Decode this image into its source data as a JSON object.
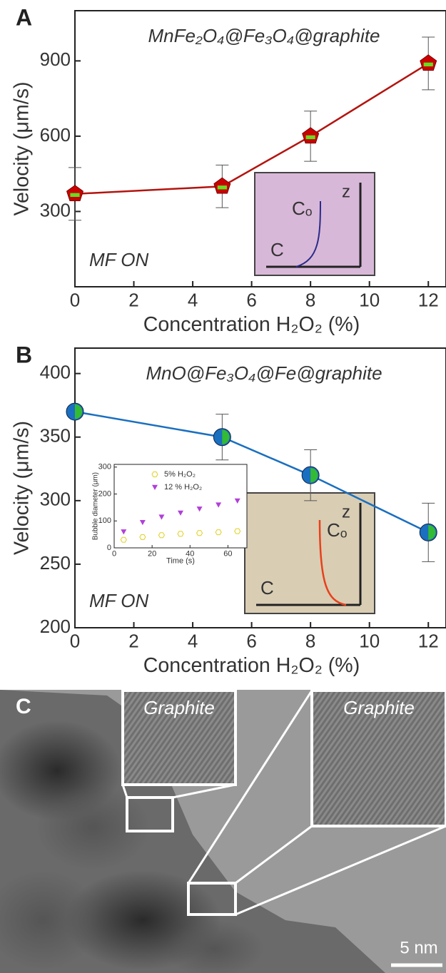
{
  "chart_data": [
    {
      "type": "line",
      "panel": "A",
      "title": "MnFe₂O₄@Fe₃O₄@graphite",
      "xlabel": "Concentration H₂O₂ (%)",
      "ylabel": "Velocity (μm/s)",
      "annotation": "MF ON",
      "x": [
        0,
        5,
        8,
        12
      ],
      "values": [
        370,
        400,
        600,
        890
      ],
      "errors": [
        105,
        85,
        100,
        105
      ],
      "color": "#b3140f",
      "marker": "pentagon",
      "marker_fill": "#cc0000",
      "marker_inner": "#66dd22",
      "xlim": [
        0,
        12.6
      ],
      "xticks": [
        0,
        2,
        4,
        6,
        8,
        10,
        12
      ],
      "ylim": [
        0,
        1100
      ],
      "yticks": [
        300,
        600,
        900
      ],
      "schematic": {
        "labels": [
          "C",
          "Cₒ",
          "z"
        ],
        "color": "#d8b8d8",
        "curve": "#2a2a8a"
      }
    },
    {
      "type": "line",
      "panel": "B",
      "title": "MnO@Fe₃O₄@Fe@graphite",
      "xlabel": "Concentration H₂O₂ (%)",
      "ylabel": "Velocity (μm/s)",
      "annotation": "MF ON",
      "x": [
        0,
        5,
        8,
        12
      ],
      "values": [
        370,
        350,
        320,
        275
      ],
      "errors": [
        0,
        18,
        20,
        23
      ],
      "color": "#1a6fc0",
      "marker": "circle",
      "marker_fill": "#1a6fc0",
      "marker_inner": "#33bb33",
      "xlim": [
        0,
        12.6
      ],
      "xticks": [
        0,
        2,
        4,
        6,
        8,
        10,
        12
      ],
      "ylim": [
        200,
        420
      ],
      "yticks": [
        200,
        250,
        300,
        350,
        400
      ],
      "schematic": {
        "labels": [
          "C",
          "Cₒ",
          "z"
        ],
        "color": "#d9cdb4",
        "curve": "#e8401a"
      }
    },
    {
      "type": "scatter",
      "xlabel": "Time (s)",
      "ylabel": "Bubble diameter (μm)",
      "series": [
        {
          "name": "5% H₂O₂",
          "color": "#e0d020",
          "marker": "hexagon",
          "x": [
            5,
            15,
            25,
            35,
            45,
            55,
            65
          ],
          "values": [
            30,
            40,
            47,
            52,
            55,
            58,
            62
          ]
        },
        {
          "name": "12 % H₂O₂",
          "color": "#b040d8",
          "marker": "triangle",
          "x": [
            5,
            15,
            25,
            35,
            45,
            55,
            65
          ],
          "values": [
            60,
            95,
            115,
            130,
            145,
            160,
            175
          ]
        }
      ],
      "xlim": [
        0,
        70
      ],
      "xticks": [
        0,
        20,
        40,
        60
      ],
      "ylim": [
        0,
        310
      ],
      "yticks": [
        0,
        100,
        200,
        300
      ]
    }
  ],
  "panel_c": {
    "label": "C",
    "insets": [
      "Graphite",
      "Graphite"
    ],
    "scale_bar": "5 nm"
  }
}
